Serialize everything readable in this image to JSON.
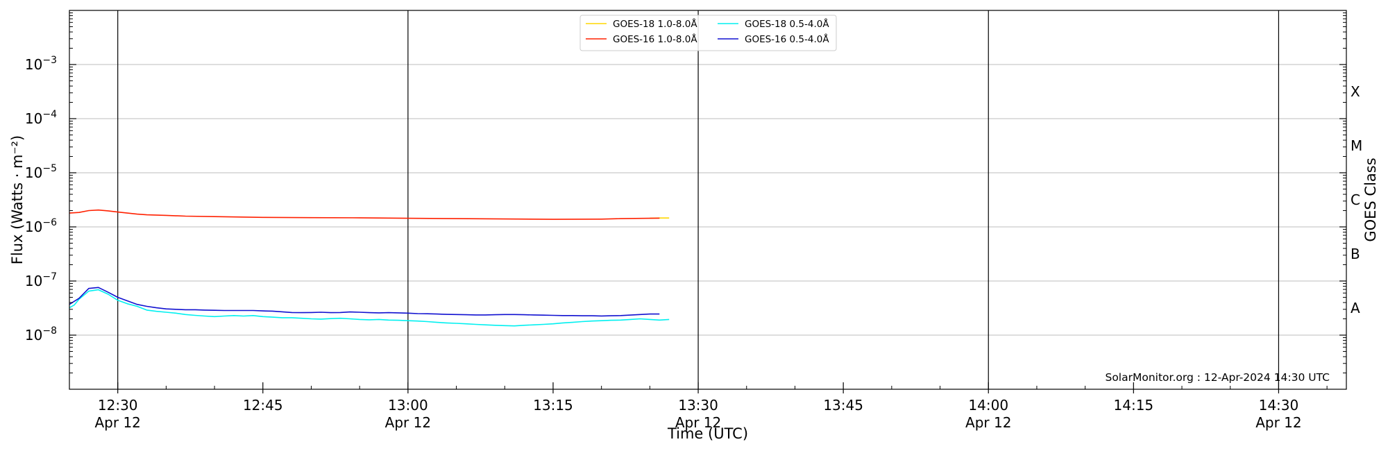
{
  "chart_data": {
    "type": "line",
    "title": "",
    "xlabel": "Time (UTC)",
    "ylabel": "Flux (Watts · m⁻²)",
    "y2label": "GOES Class",
    "yscale": "log",
    "xlim": [
      "12:25",
      "14:37"
    ],
    "ylim": [
      1e-09,
      0.01
    ],
    "grid": "horizontal at decades",
    "legend_position": "top-center",
    "x_ticks": [
      {
        "time": "12:30",
        "label": "12:30",
        "sublabel": "Apr 12"
      },
      {
        "time": "12:45",
        "label": "12:45",
        "sublabel": ""
      },
      {
        "time": "13:00",
        "label": "13:00",
        "sublabel": "Apr 12"
      },
      {
        "time": "13:15",
        "label": "13:15",
        "sublabel": ""
      },
      {
        "time": "13:30",
        "label": "13:30",
        "sublabel": "Apr 12"
      },
      {
        "time": "13:45",
        "label": "13:45",
        "sublabel": ""
      },
      {
        "time": "14:00",
        "label": "14:00",
        "sublabel": "Apr 12"
      },
      {
        "time": "14:15",
        "label": "14:15",
        "sublabel": ""
      },
      {
        "time": "14:30",
        "label": "14:30",
        "sublabel": "Apr 12"
      }
    ],
    "vertical_lines": [
      "12:30",
      "13:00",
      "13:30",
      "14:00",
      "14:30"
    ],
    "y_ticks": [
      {
        "value": 0.001,
        "base": "10",
        "exp": "−3"
      },
      {
        "value": 0.0001,
        "base": "10",
        "exp": "−4"
      },
      {
        "value": 1e-05,
        "base": "10",
        "exp": "−5"
      },
      {
        "value": 1e-06,
        "base": "10",
        "exp": "−6"
      },
      {
        "value": 1e-07,
        "base": "10",
        "exp": "−7"
      },
      {
        "value": 1e-08,
        "base": "10",
        "exp": "−8"
      }
    ],
    "goes_classes": [
      {
        "label": "X",
        "value": 0.000316
      },
      {
        "label": "M",
        "value": 3.16e-05
      },
      {
        "label": "C",
        "value": 3.16e-06
      },
      {
        "label": "B",
        "value": 3.16e-07
      },
      {
        "label": "A",
        "value": 3.16e-08
      }
    ],
    "series": [
      {
        "name": "GOES-18 1.0-8.0Å",
        "color": "#ffd700",
        "x": [
          "13:25",
          "13:26",
          "13:27"
        ],
        "y": [
          1.45e-06,
          1.46e-06,
          1.46e-06
        ]
      },
      {
        "name": "GOES-16 1.0-8.0Å",
        "color": "#ff2000",
        "x": [
          "12:25",
          "12:26",
          "12:27",
          "12:28",
          "12:29",
          "12:30",
          "12:31",
          "12:32",
          "12:33",
          "12:35",
          "12:37",
          "12:40",
          "12:45",
          "12:50",
          "12:55",
          "13:00",
          "13:05",
          "13:10",
          "13:15",
          "13:20",
          "13:22",
          "13:25",
          "13:26"
        ],
        "y": [
          1.8e-06,
          1.85e-06,
          2e-06,
          2.05e-06,
          1.98e-06,
          1.88e-06,
          1.8e-06,
          1.72e-06,
          1.67e-06,
          1.63e-06,
          1.58e-06,
          1.55e-06,
          1.5e-06,
          1.48e-06,
          1.47e-06,
          1.44e-06,
          1.42e-06,
          1.4e-06,
          1.38e-06,
          1.39e-06,
          1.42e-06,
          1.44e-06,
          1.45e-06
        ]
      },
      {
        "name": "GOES-18 0.5-4.0Å",
        "color": "#00f0f0",
        "x": [
          "12:25",
          "12:25.5",
          "12:26",
          "12:27",
          "12:28",
          "12:29",
          "12:30",
          "12:31",
          "12:32",
          "12:33",
          "12:34",
          "12:35",
          "12:36",
          "12:37",
          "12:38",
          "12:39",
          "12:40",
          "12:41",
          "12:42",
          "12:43",
          "12:44",
          "12:45",
          "12:46",
          "12:47",
          "12:48",
          "12:49",
          "12:50",
          "12:51",
          "12:52",
          "12:53",
          "12:54",
          "12:55",
          "12:56",
          "12:57",
          "12:58",
          "12:59",
          "13:00",
          "13:01",
          "13:02",
          "13:03",
          "13:04",
          "13:05",
          "13:06",
          "13:07",
          "13:08",
          "13:09",
          "13:10",
          "13:11",
          "13:12",
          "13:13",
          "13:14",
          "13:15",
          "13:16",
          "13:17",
          "13:18",
          "13:19",
          "13:20",
          "13:21",
          "13:22",
          "13:23",
          "13:24",
          "13:25",
          "13:26",
          "13:27"
        ],
        "y": [
          3.2e-08,
          3.6e-08,
          4.6e-08,
          6.5e-08,
          6.9e-08,
          5.7e-08,
          4.4e-08,
          3.8e-08,
          3.4e-08,
          2.9e-08,
          2.75e-08,
          2.65e-08,
          2.55e-08,
          2.4e-08,
          2.32e-08,
          2.25e-08,
          2.2e-08,
          2.25e-08,
          2.3e-08,
          2.25e-08,
          2.3e-08,
          2.2e-08,
          2.15e-08,
          2.1e-08,
          2.1e-08,
          2.05e-08,
          2e-08,
          1.98e-08,
          2.02e-08,
          2.05e-08,
          2e-08,
          1.95e-08,
          1.92e-08,
          1.95e-08,
          1.9e-08,
          1.88e-08,
          1.85e-08,
          1.82e-08,
          1.78e-08,
          1.72e-08,
          1.68e-08,
          1.65e-08,
          1.62e-08,
          1.58e-08,
          1.55e-08,
          1.52e-08,
          1.5e-08,
          1.48e-08,
          1.52e-08,
          1.55e-08,
          1.58e-08,
          1.62e-08,
          1.68e-08,
          1.72e-08,
          1.78e-08,
          1.82e-08,
          1.85e-08,
          1.88e-08,
          1.9e-08,
          1.95e-08,
          2e-08,
          1.95e-08,
          1.9e-08,
          1.95e-08
        ]
      },
      {
        "name": "GOES-16 0.5-4.0Å",
        "color": "#1010d0",
        "x": [
          "12:25",
          "12:26",
          "12:27",
          "12:28",
          "12:29",
          "12:30",
          "12:31",
          "12:32",
          "12:33",
          "12:34",
          "12:35",
          "12:36",
          "12:37",
          "12:38",
          "12:39",
          "12:40",
          "12:41",
          "12:42",
          "12:43",
          "12:44",
          "12:45",
          "12:46",
          "12:47",
          "12:48",
          "12:49",
          "12:50",
          "12:51",
          "12:52",
          "12:53",
          "12:54",
          "12:55",
          "12:56",
          "12:57",
          "12:58",
          "12:59",
          "13:00",
          "13:01",
          "13:02",
          "13:03",
          "13:04",
          "13:05",
          "13:06",
          "13:07",
          "13:08",
          "13:09",
          "13:10",
          "13:11",
          "13:12",
          "13:13",
          "13:14",
          "13:15",
          "13:16",
          "13:17",
          "13:18",
          "13:19",
          "13:20",
          "13:21",
          "13:22",
          "13:23",
          "13:24",
          "13:25",
          "13:26"
        ],
        "y": [
          3.7e-08,
          4.8e-08,
          7.3e-08,
          7.6e-08,
          6.2e-08,
          5e-08,
          4.3e-08,
          3.7e-08,
          3.4e-08,
          3.2e-08,
          3.05e-08,
          3e-08,
          2.95e-08,
          2.95e-08,
          2.9e-08,
          2.88e-08,
          2.85e-08,
          2.85e-08,
          2.85e-08,
          2.85e-08,
          2.8e-08,
          2.78e-08,
          2.7e-08,
          2.62e-08,
          2.6e-08,
          2.62e-08,
          2.65e-08,
          2.6e-08,
          2.62e-08,
          2.68e-08,
          2.65e-08,
          2.6e-08,
          2.58e-08,
          2.6e-08,
          2.58e-08,
          2.55e-08,
          2.5e-08,
          2.48e-08,
          2.45e-08,
          2.42e-08,
          2.4e-08,
          2.38e-08,
          2.36e-08,
          2.36e-08,
          2.38e-08,
          2.4e-08,
          2.4e-08,
          2.38e-08,
          2.36e-08,
          2.34e-08,
          2.32e-08,
          2.3e-08,
          2.3e-08,
          2.28e-08,
          2.28e-08,
          2.26e-08,
          2.28e-08,
          2.3e-08,
          2.35e-08,
          2.4e-08,
          2.45e-08,
          2.45e-08
        ]
      }
    ],
    "annotation": "SolarMonitor.org : 12-Apr-2024 14:30 UTC"
  }
}
